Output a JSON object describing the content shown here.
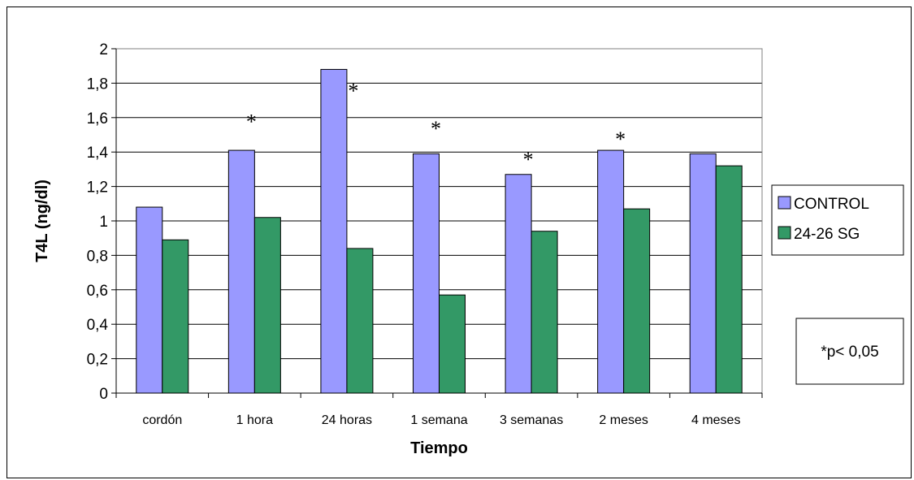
{
  "chart_data": {
    "type": "bar",
    "categories": [
      "cordón",
      "1 hora",
      "24 horas",
      "1 semana",
      "3 semanas",
      "2 meses",
      "4 meses"
    ],
    "series": [
      {
        "name": "CONTROL",
        "color": "#9999ff",
        "values": [
          1.08,
          1.41,
          1.88,
          1.39,
          1.27,
          1.41,
          1.39
        ]
      },
      {
        "name": "24-26 SG",
        "color": "#339966",
        "values": [
          0.89,
          1.02,
          0.84,
          0.57,
          0.94,
          1.07,
          1.32
        ]
      }
    ],
    "xlabel": "Tiempo",
    "ylabel": "T4L (ng/dl)",
    "ylim": [
      0,
      2
    ],
    "yticks": [
      "0",
      "0,2",
      "0,4",
      "0,6",
      "0,8",
      "1",
      "1,2",
      "1,4",
      "1,6",
      "1,8",
      "2"
    ],
    "grid": true,
    "plot_background": "#ffffff",
    "legend_position": "right",
    "annotations": [
      {
        "text": "*",
        "category": "1 hora",
        "y": 1.62
      },
      {
        "text": "*",
        "category": "24 horas",
        "y": 1.8
      },
      {
        "text": "*",
        "category": "1 semana",
        "y": 1.58
      },
      {
        "text": "*",
        "category": "3 semanas",
        "y": 1.4
      },
      {
        "text": "*",
        "category": "2 meses",
        "y": 1.52
      }
    ],
    "note": "*p< 0,05"
  }
}
